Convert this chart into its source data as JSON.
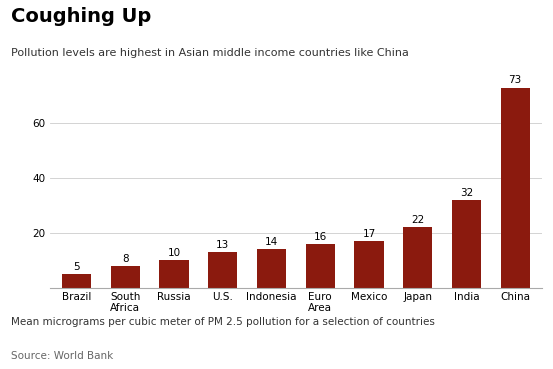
{
  "title": "Coughing Up",
  "subtitle": "Pollution levels are highest in Asian middle income countries like China",
  "footnote": "Mean micrograms per cubic meter of PM 2.5 pollution for a selection of countries",
  "source": "Source: World Bank",
  "categories": [
    "Brazil",
    "South\nAfrica",
    "Russia",
    "U.S.",
    "Indonesia",
    "Euro\nArea",
    "Mexico",
    "Japan",
    "India",
    "China"
  ],
  "values": [
    5,
    8,
    10,
    13,
    14,
    16,
    17,
    22,
    32,
    73
  ],
  "bar_color": "#8B1A0E",
  "background_color": "#ffffff",
  "ylim": [
    0,
    78
  ],
  "yticks": [
    20,
    40,
    60
  ],
  "title_fontsize": 14,
  "subtitle_fontsize": 8,
  "footnote_fontsize": 7.5,
  "source_fontsize": 7.5,
  "tick_label_fontsize": 7.5,
  "value_label_fontsize": 7.5
}
